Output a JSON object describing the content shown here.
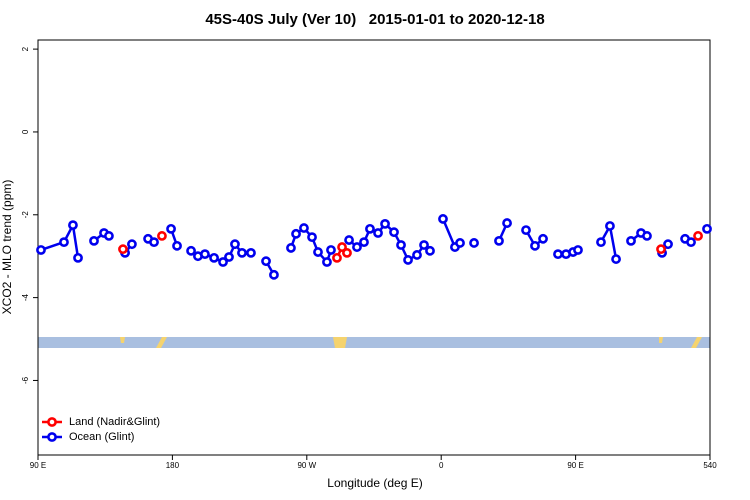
{
  "chart_data": {
    "type": "line",
    "title": "45S-40S July (Ver 10)   2015-01-01 to 2020-12-18",
    "x_label": "Longitude (deg E)",
    "y_label": "XCO2 - MLO trend (ppm)",
    "xlim": [
      90,
      540
    ],
    "ylim": [
      -7.8,
      2.22
    ],
    "xticks": [
      {
        "value": 90,
        "label": "90 E"
      },
      180,
      {
        "value": 270,
        "label": "90 W"
      },
      {
        "value": 360,
        "label": "0"
      },
      {
        "value": 450,
        "label": "90 E"
      },
      540
    ],
    "yticks": [
      -6,
      -4,
      -2,
      0,
      2
    ],
    "legend": "bottom left",
    "series": [
      {
        "name": "Land (Nadir&Glint)",
        "color": "#ff0000",
        "x": [
          146.9,
          null,
          173.0,
          null,
          290.2,
          293.6,
          296.9,
          null,
          507.2,
          null,
          532.0
        ],
        "values": [
          -2.83,
          null,
          -2.51,
          null,
          -3.04,
          -2.78,
          -2.92,
          null,
          -2.83,
          null,
          -2.51
        ]
      },
      {
        "name": "Ocean (Glint)",
        "color": "#0000ee",
        "x": [
          92.0,
          107.4,
          113.4,
          116.8,
          null,
          127.5,
          134.2,
          137.5,
          null,
          148.3,
          152.9,
          null,
          163.7,
          167.7,
          null,
          179.1,
          183.1,
          null,
          192.5,
          197.1,
          201.8,
          207.9,
          213.9,
          217.9,
          221.9,
          226.6,
          232.6,
          null,
          242.7,
          248.0,
          null,
          259.4,
          262.8,
          268.1,
          273.5,
          277.5,
          283.5,
          286.2,
          null,
          298.3,
          303.6,
          308.3,
          312.3,
          317.7,
          322.4,
          328.4,
          333.1,
          337.8,
          343.8,
          348.5,
          352.5,
          null,
          361.2,
          369.2,
          372.6,
          null,
          382.0,
          null,
          398.7,
          404.1,
          null,
          416.8,
          422.8,
          428.2,
          null,
          438.2,
          443.6,
          448.3,
          451.6,
          null,
          467.0,
          473.0,
          477.1,
          null,
          487.1,
          493.8,
          497.8,
          null,
          507.9,
          511.9,
          null,
          523.3,
          527.3,
          null,
          538.0
        ],
        "values": [
          -2.85,
          -2.66,
          -2.25,
          -3.04,
          null,
          -2.63,
          -2.44,
          -2.51,
          null,
          -2.92,
          -2.71,
          null,
          -2.58,
          -2.66,
          null,
          -2.34,
          -2.75,
          null,
          -2.87,
          -3.0,
          -2.95,
          -3.04,
          -3.14,
          -3.02,
          -2.71,
          -2.92,
          -2.92,
          null,
          -3.12,
          -3.45,
          null,
          -2.8,
          -2.46,
          -2.32,
          -2.54,
          -2.9,
          -3.14,
          -2.85,
          null,
          -2.61,
          -2.78,
          -2.66,
          -2.34,
          -2.44,
          -2.22,
          -2.42,
          -2.73,
          -3.09,
          -2.97,
          -2.73,
          -2.87,
          null,
          -2.1,
          -2.78,
          -2.68,
          null,
          -2.68,
          null,
          -2.63,
          -2.2,
          null,
          -2.37,
          -2.75,
          -2.58,
          null,
          -2.95,
          -2.95,
          -2.9,
          -2.85,
          null,
          -2.66,
          -2.27,
          -3.07,
          null,
          -2.63,
          -2.44,
          -2.51,
          null,
          -2.92,
          -2.71,
          null,
          -2.58,
          -2.66,
          null,
          -2.34
        ]
      }
    ]
  }
}
